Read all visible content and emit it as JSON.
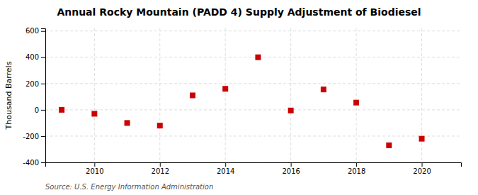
{
  "chart_data": {
    "type": "scatter",
    "title": "Annual Rocky Mountain (PADD 4) Supply Adjustment of Biodiesel",
    "ylabel": "Thousand Barrels",
    "annotations": [
      "Source: U.S. Energy Information Administration"
    ],
    "x": [
      2009,
      2010,
      2011,
      2012,
      2013,
      2014,
      2015,
      2016,
      2017,
      2018,
      2019,
      2020
    ],
    "values": [
      0,
      -30,
      -100,
      -120,
      110,
      160,
      400,
      -5,
      155,
      55,
      -270,
      -220
    ],
    "color": "#cc0000",
    "marker": "square",
    "xlim": [
      2008.5,
      2021.2
    ],
    "xticks": [
      2010,
      2012,
      2014,
      2016,
      2018,
      2020
    ],
    "ylim": [
      -400,
      620
    ],
    "yticks": [
      -400,
      -200,
      0,
      200,
      400,
      600
    ],
    "grid": true
  }
}
